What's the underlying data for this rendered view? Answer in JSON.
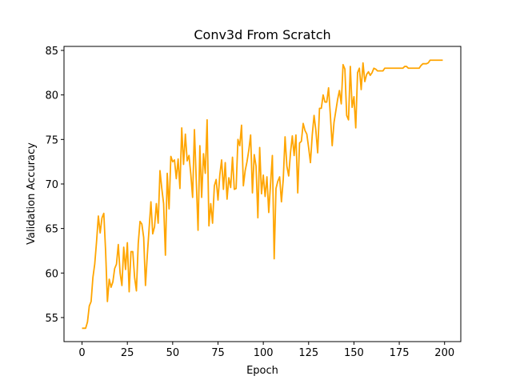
{
  "chart_data": {
    "type": "line",
    "title": "Conv3d From Scratch",
    "x_label": "Epoch",
    "y_label": "Validation Accuracy",
    "x": [
      0,
      1,
      2,
      3,
      4,
      5,
      6,
      7,
      8,
      9,
      10,
      11,
      12,
      13,
      14,
      15,
      16,
      17,
      18,
      19,
      20,
      21,
      22,
      23,
      24,
      25,
      26,
      27,
      28,
      29,
      30,
      31,
      32,
      33,
      34,
      35,
      36,
      37,
      38,
      39,
      40,
      41,
      42,
      43,
      44,
      45,
      46,
      47,
      48,
      49,
      50,
      51,
      52,
      53,
      54,
      55,
      56,
      57,
      58,
      59,
      60,
      61,
      62,
      63,
      64,
      65,
      66,
      67,
      68,
      69,
      70,
      71,
      72,
      73,
      74,
      75,
      76,
      77,
      78,
      79,
      80,
      81,
      82,
      83,
      84,
      85,
      86,
      87,
      88,
      89,
      90,
      91,
      92,
      93,
      94,
      95,
      96,
      97,
      98,
      99,
      100,
      101,
      102,
      103,
      104,
      105,
      106,
      107,
      108,
      109,
      110,
      111,
      112,
      113,
      114,
      115,
      116,
      117,
      118,
      119,
      120,
      121,
      122,
      123,
      124,
      125,
      126,
      127,
      128,
      129,
      130,
      131,
      132,
      133,
      134,
      135,
      136,
      137,
      138,
      139,
      140,
      141,
      142,
      143,
      144,
      145,
      146,
      147,
      148,
      149,
      150,
      151,
      152,
      153,
      154,
      155,
      156,
      157,
      158,
      159,
      160,
      161,
      162,
      163,
      164,
      165,
      166,
      167,
      168,
      169,
      170,
      171,
      172,
      173,
      174,
      175,
      176,
      177,
      178,
      179,
      180,
      181,
      182,
      183,
      184,
      185,
      186,
      187,
      188,
      189,
      190,
      191,
      192,
      193,
      194,
      195,
      196,
      197,
      198,
      199
    ],
    "series": [
      {
        "color": "#ffa500",
        "values": [
          53.8,
          53.8,
          53.8,
          54.5,
          56.3,
          56.8,
          59.5,
          61,
          63.5,
          66.4,
          64.5,
          66.2,
          66.7,
          62.5,
          56.8,
          59.3,
          58.4,
          59,
          60.5,
          61,
          63.2,
          60,
          58.6,
          62.9,
          60.4,
          63.4,
          57.9,
          62.4,
          62.4,
          59.5,
          58,
          63.3,
          65.8,
          65.5,
          64,
          58.6,
          62,
          65,
          68,
          64.4,
          65.2,
          67.8,
          65.6,
          71.5,
          69.5,
          67.8,
          62,
          71.2,
          67.2,
          73.1,
          72.5,
          72.7,
          70.6,
          72.8,
          69.5,
          76.3,
          72.2,
          75.6,
          72.6,
          73.2,
          71.1,
          68.5,
          76.1,
          70.5,
          64.8,
          74.3,
          68.5,
          73.4,
          71.2,
          77.2,
          65.3,
          67.8,
          65.6,
          69.8,
          70.5,
          68.2,
          71,
          72.7,
          69.4,
          72.4,
          68.3,
          70.7,
          69.6,
          73,
          69.4,
          69.5,
          75,
          74.3,
          76.6,
          69.8,
          71.5,
          72.5,
          73.8,
          75.5,
          69,
          73.3,
          72,
          66.2,
          74.1,
          68.9,
          71,
          68.6,
          70.8,
          66.8,
          70,
          73.2,
          61.6,
          69.5,
          70.3,
          70.8,
          68,
          70.5,
          75.3,
          72,
          70.9,
          73.5,
          75.4,
          73.2,
          75.5,
          69,
          74.6,
          74.8,
          76.8,
          76,
          75.6,
          74.1,
          72.4,
          75.5,
          77.7,
          76,
          73.5,
          78.5,
          78.5,
          80,
          79.2,
          79.2,
          80.8,
          77.7,
          74.3,
          76.9,
          78.2,
          79.5,
          80.5,
          79,
          83.4,
          82.9,
          77.7,
          77.2,
          83.2,
          78.6,
          79.8,
          76.3,
          82.5,
          83,
          80.6,
          83.6,
          81.5,
          82.3,
          82.6,
          82.2,
          82.5,
          83,
          82.9,
          82.7,
          82.7,
          82.7,
          82.7,
          83,
          83,
          83,
          83,
          83,
          83,
          83,
          83,
          83,
          83,
          83,
          83.2,
          83.2,
          83,
          83,
          83,
          83,
          83,
          83,
          83,
          83.3,
          83.5,
          83.5,
          83.5,
          83.6,
          83.9,
          83.9,
          83.9,
          83.9,
          83.9,
          83.9,
          83.9,
          83.9
        ]
      }
    ],
    "xlim": [
      -9.95,
      208.95
    ],
    "ylim": [
      52.3,
      85.45
    ],
    "xticks": [
      0,
      25,
      50,
      75,
      100,
      125,
      150,
      175,
      200
    ],
    "yticks": [
      55,
      60,
      65,
      70,
      75,
      80,
      85
    ]
  }
}
